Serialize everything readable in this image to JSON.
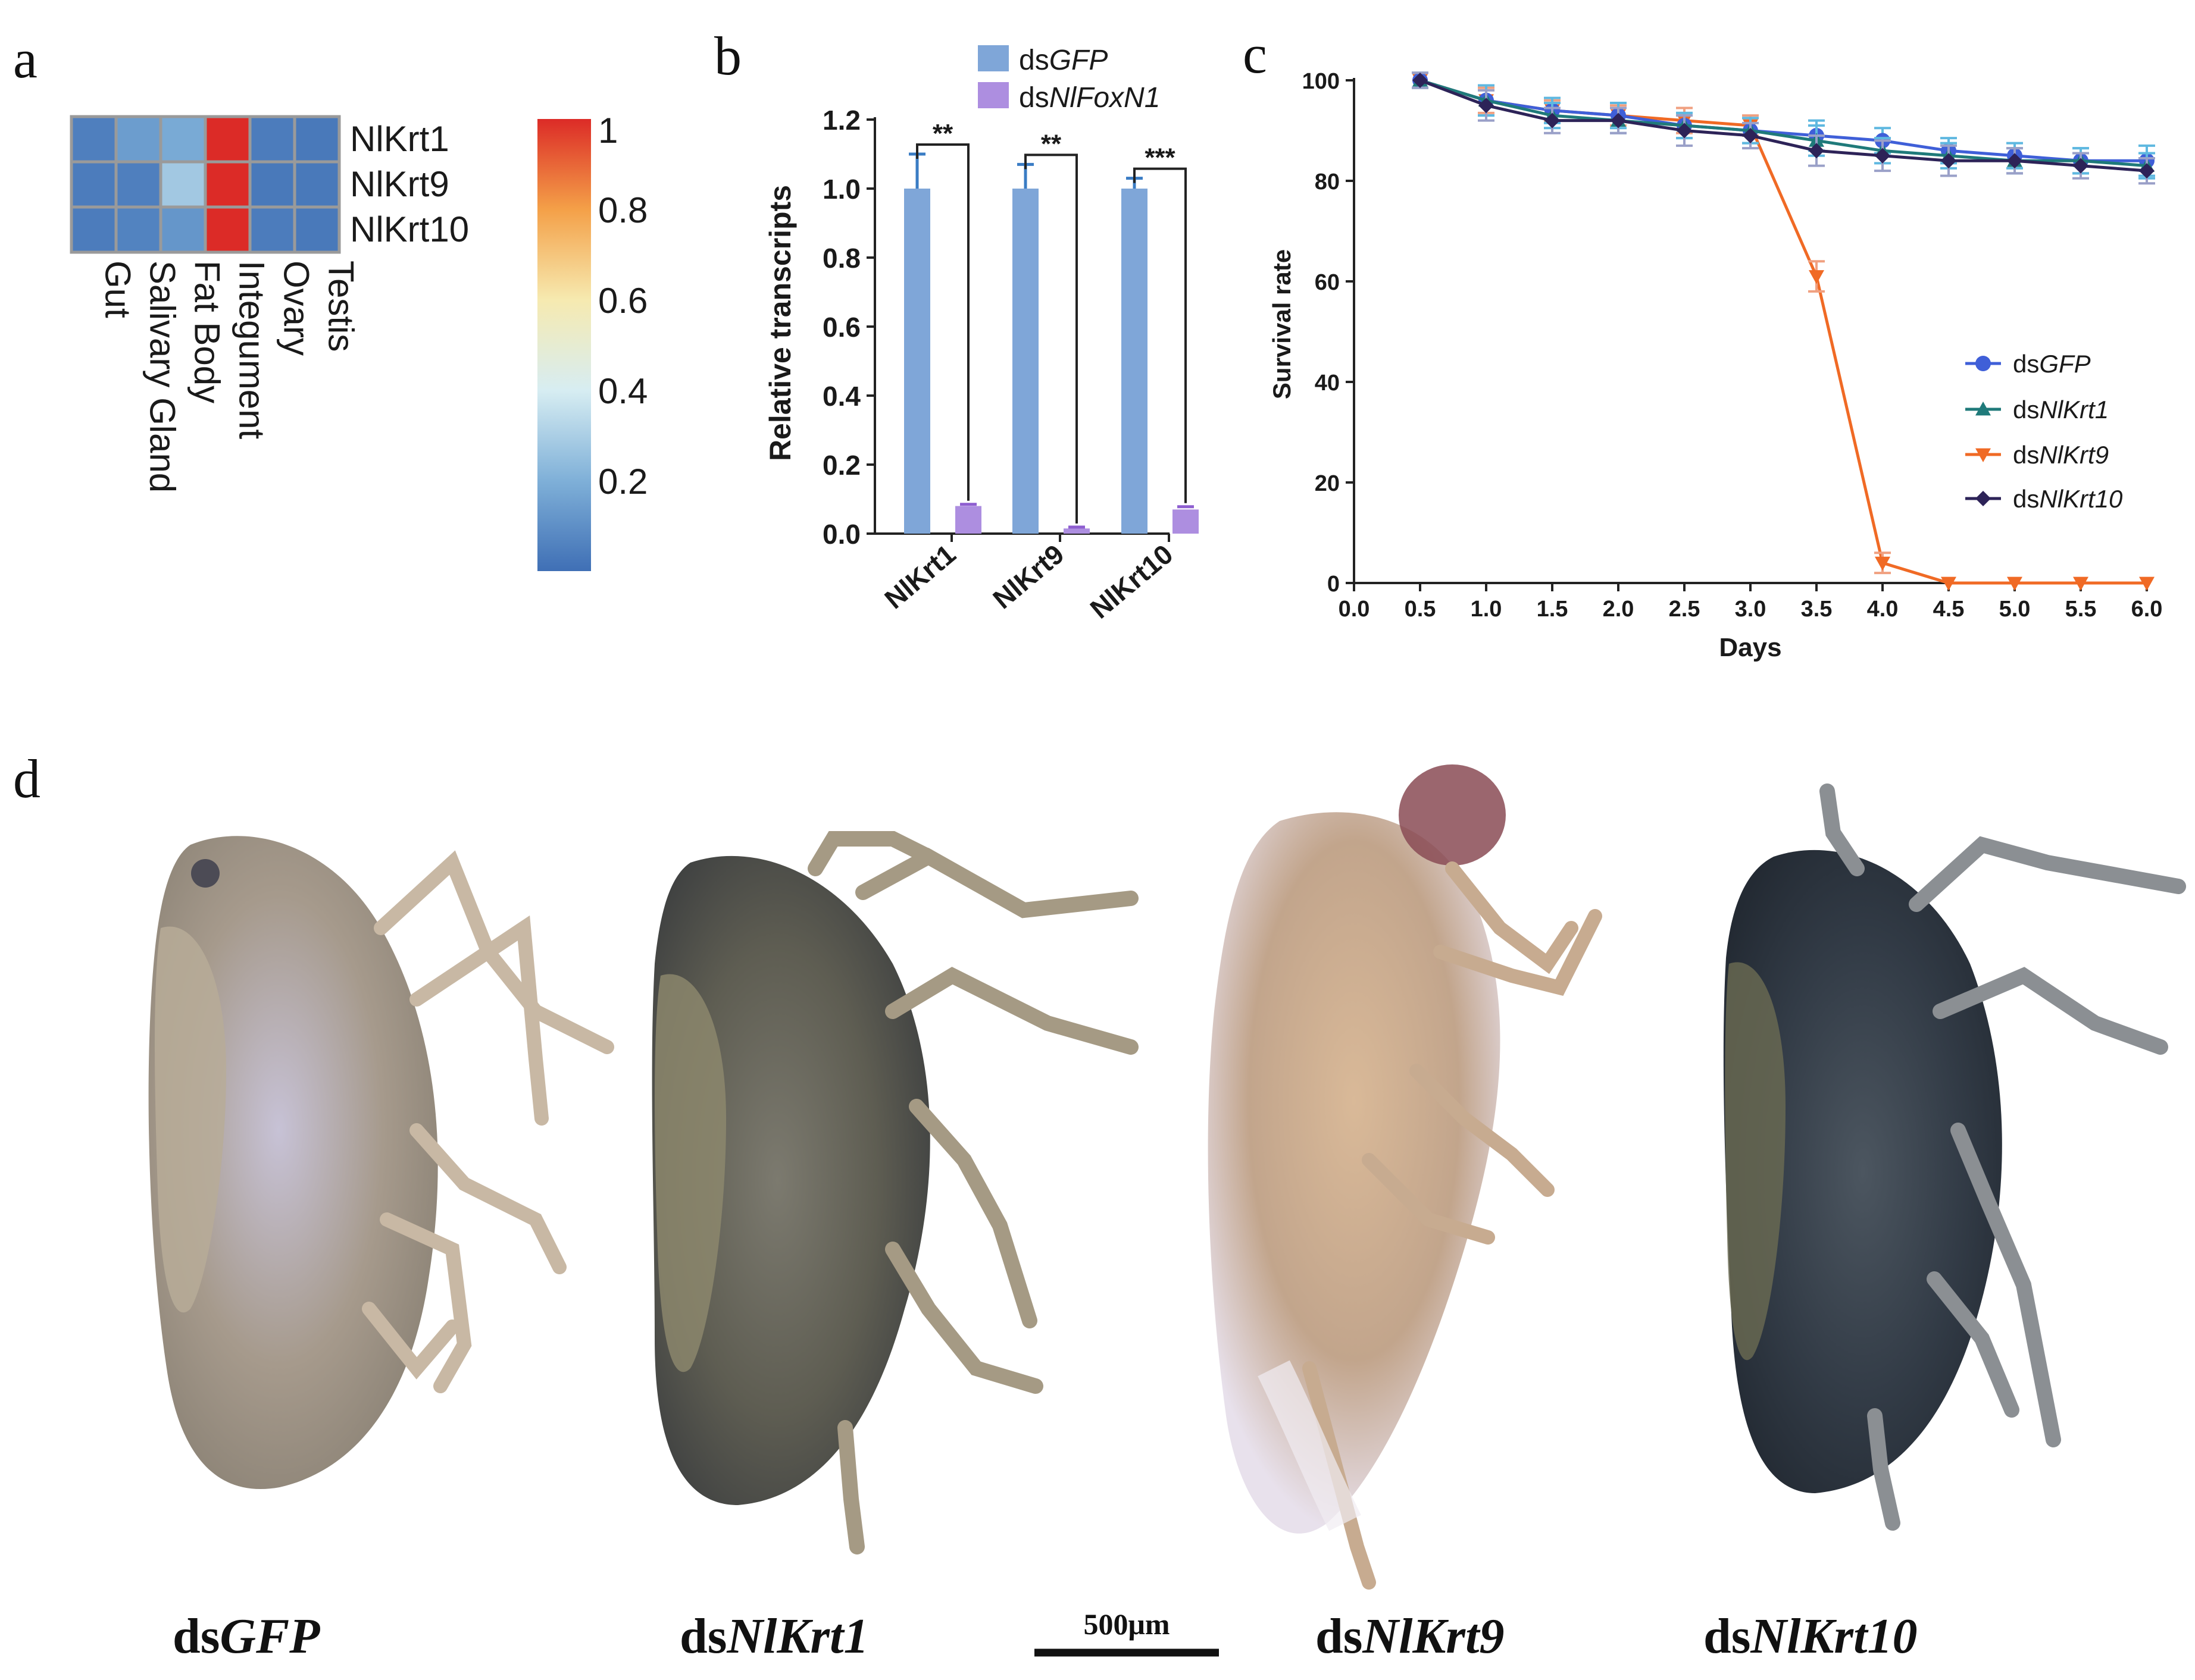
{
  "colors": {
    "low": "#4a78b8",
    "high": "#e0322c",
    "dsGFP": "#3f5fd8",
    "dsNlKrt1": "#1f7a7a",
    "dsNlKrt9": "#f06a25",
    "dsNlKrt10": "#2d2358",
    "bar_dsGFP": "#7fa6d8",
    "bar_dsNlFoxN1": "#ad8ee0",
    "err_dsGFP": "#3a7cc4",
    "err_dsNlFoxN1": "#8e5ed0"
  },
  "panels": {
    "a": "a",
    "b": "b",
    "c": "c",
    "d": "d"
  },
  "chart_data": [
    {
      "type": "heatmap",
      "panel": "a",
      "rows": [
        "NlKrt1",
        "NlKrt9",
        "NlKrt10"
      ],
      "columns": [
        "Gut",
        "Salivary Gland",
        "Fat Body",
        "Integument",
        "Ovary",
        "Testis"
      ],
      "values": [
        [
          0.05,
          0.14,
          0.18,
          1.0,
          0.04,
          0.03
        ],
        [
          0.04,
          0.05,
          0.28,
          1.0,
          0.03,
          0.03
        ],
        [
          0.04,
          0.06,
          0.12,
          1.0,
          0.04,
          0.03
        ]
      ],
      "colorbar": {
        "range": [
          0,
          1
        ],
        "ticks": [
          "1",
          "0.8",
          "0.6",
          "0.4",
          "0.2"
        ],
        "tick_values": [
          1,
          0.8,
          0.6,
          0.4,
          0.2
        ]
      }
    },
    {
      "type": "bar",
      "panel": "b",
      "categories": [
        "NlKrt1",
        "NlKrt9",
        "NlKrt10"
      ],
      "series": [
        {
          "name_prefix": "ds",
          "name_italic": "GFP",
          "values": [
            1.0,
            1.0,
            1.0
          ],
          "errors": [
            0.1,
            0.07,
            0.03
          ]
        },
        {
          "name_prefix": "ds",
          "name_italic": "NlFoxN1",
          "values": [
            0.08,
            0.015,
            0.07
          ],
          "errors": [
            0.005,
            0.004,
            0.008
          ]
        }
      ],
      "significance": [
        "**",
        "**",
        "***"
      ],
      "ylabel": "Relative transcripts",
      "ylim": [
        0,
        1.2
      ],
      "yticks": [
        "0.0",
        "0.2",
        "0.4",
        "0.6",
        "0.8",
        "1.0",
        "1.2"
      ],
      "ytick_values": [
        0,
        0.2,
        0.4,
        0.6,
        0.8,
        1.0,
        1.2
      ],
      "legend": "top"
    },
    {
      "type": "line",
      "panel": "c",
      "x": [
        0.5,
        1.0,
        1.5,
        2.0,
        2.5,
        3.0,
        3.5,
        4.0,
        4.5,
        5.0,
        5.5,
        6.0
      ],
      "series": [
        {
          "key": "dsGFP",
          "name_prefix": "ds",
          "name_italic": "GFP",
          "marker": "circle",
          "values": [
            100,
            96,
            94,
            93,
            91,
            90,
            89,
            88,
            86,
            85,
            84,
            84
          ],
          "errors": [
            1.5,
            3,
            2.5,
            2.5,
            2.5,
            2.5,
            3,
            2.5,
            2.5,
            2.5,
            2.5,
            3
          ]
        },
        {
          "key": "dsNlKrt1",
          "name_prefix": "ds",
          "name_italic": "NlKrt1",
          "marker": "triangle-up",
          "values": [
            100,
            96,
            93,
            92,
            91,
            90,
            88,
            86,
            85,
            84,
            84,
            83
          ],
          "errors": [
            1.5,
            3,
            2.5,
            2.5,
            2.5,
            2.5,
            3,
            2.5,
            2.5,
            2.5,
            2.5,
            2.5
          ]
        },
        {
          "key": "dsNlKrt9",
          "name_prefix": "ds",
          "name_italic": "NlKrt9",
          "marker": "triangle-down",
          "values": [
            100,
            96,
            94,
            93,
            92,
            91,
            61,
            4,
            0,
            0,
            0,
            0
          ],
          "errors": [
            1.5,
            2.5,
            2,
            2,
            2.5,
            2,
            3,
            2,
            0,
            0,
            0,
            0
          ]
        },
        {
          "key": "dsNlKrt10",
          "name_prefix": "ds",
          "name_italic": "NlKrt10",
          "marker": "diamond",
          "values": [
            100,
            95,
            92,
            92,
            90,
            89,
            86,
            85,
            84,
            84,
            83,
            82
          ],
          "errors": [
            1.5,
            3,
            2.5,
            2.5,
            3,
            2.5,
            3,
            3,
            3,
            2.5,
            2.5,
            2.5
          ]
        }
      ],
      "xlabel": "Days",
      "ylabel": "Survival rate",
      "xlim": [
        0,
        6
      ],
      "ylim": [
        0,
        100
      ],
      "xticks": [
        "0.0",
        "0.5",
        "1.0",
        "1.5",
        "2.0",
        "2.5",
        "3.0",
        "3.5",
        "4.0",
        "4.5",
        "5.0",
        "5.5",
        "6.0"
      ],
      "xtick_values": [
        0,
        0.5,
        1,
        1.5,
        2,
        2.5,
        3,
        3.5,
        4,
        4.5,
        5,
        5.5,
        6
      ],
      "yticks": [
        "0",
        "20",
        "40",
        "60",
        "80",
        "100"
      ],
      "ytick_values": [
        0,
        20,
        40,
        60,
        80,
        100
      ],
      "legend": "right"
    }
  ],
  "photos": {
    "labels": [
      {
        "prefix": "ds",
        "italic": "GFP"
      },
      {
        "prefix": "ds",
        "italic": "NlKrt1"
      },
      {
        "prefix": "ds",
        "italic": "NlKrt9"
      },
      {
        "prefix": "ds",
        "italic": "NlKrt10"
      }
    ],
    "scale_bar": "500μm"
  }
}
